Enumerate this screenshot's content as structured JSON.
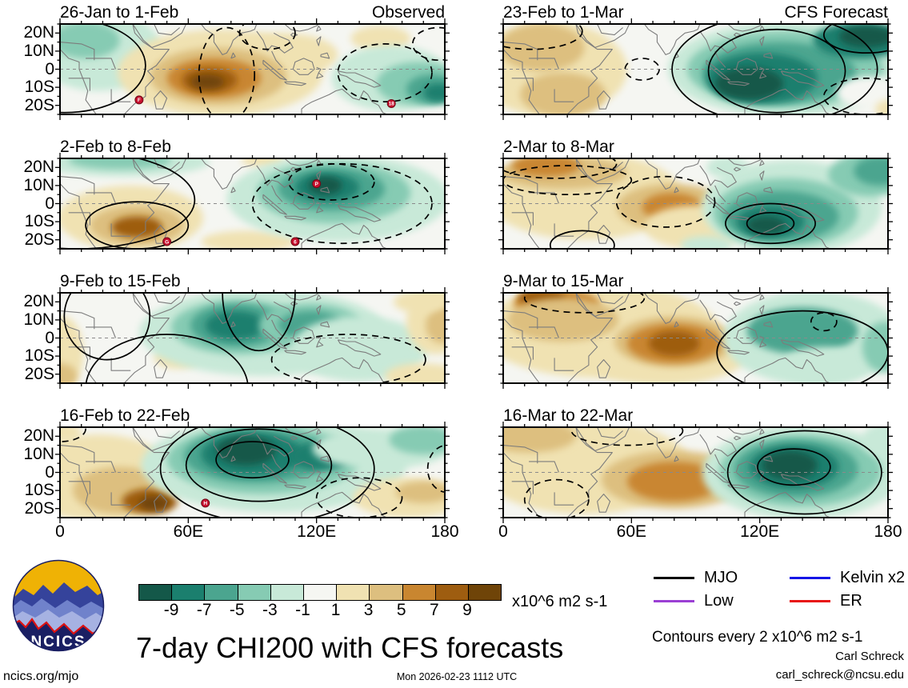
{
  "page": {
    "main_title": "7-day CHI200 with CFS forecasts",
    "timestamp": "Mon 2026-02-23 1112 UTC",
    "url_label": "ncics.org/mjo",
    "credit_name": "Carl Schreck",
    "credit_email": "carl_schreck@ncsu.edu",
    "contours_note": "Contours every 2 x10^6 m2 s-1",
    "units_label": "x10^6 m2 s-1",
    "logo_text": "NCICS"
  },
  "legend": {
    "entries": [
      {
        "label": "MJO",
        "color": "#000000"
      },
      {
        "label": "Kelvin x2",
        "color": "#1414e6"
      },
      {
        "label": "Low",
        "color": "#9b3fd4"
      },
      {
        "label": "ER",
        "color": "#e81414"
      }
    ]
  },
  "chart_data": {
    "type": "heatmap",
    "description": "Eight filled-contour longitude-latitude map panels of 7-day mean CHI200 anomalies; left column observed weeks, right column CFS forecast weeks. Shading every 2 x10^6 m2 s-1 from -9 (teal) to +9 (brown); black contours, gray coastlines, dashed gray equator, red tropical-cyclone markers.",
    "colorbar": {
      "tick_labels": [
        "-9",
        "-7",
        "-5",
        "-3",
        "-1",
        "1",
        "3",
        "5",
        "7",
        "9"
      ],
      "colors": [
        "#145849",
        "#1b7f6e",
        "#4ba58f",
        "#86cbb3",
        "#c8e9d8",
        "#f5f6f2",
        "#f0e2b2",
        "#ddbf7f",
        "#c98630",
        "#9e5d10",
        "#6f4408"
      ]
    },
    "lon_axis": {
      "tick_labels": [
        "0",
        "60E",
        "120E",
        "180"
      ],
      "tick_values": [
        0,
        60,
        120,
        180
      ],
      "range": [
        0,
        180
      ]
    },
    "lat_axis": {
      "tick_labels": [
        "20N",
        "10N",
        "0",
        "10S",
        "20S"
      ],
      "tick_values": [
        20,
        10,
        0,
        -10,
        -20
      ],
      "range": [
        -25,
        25
      ]
    },
    "panels": [
      {
        "title": "26-Jan to 1-Feb",
        "tag": "Observed",
        "col": 0,
        "row": 0,
        "features": [
          [
            18,
            10,
            30,
            22,
            4
          ],
          [
            12,
            16,
            16,
            10,
            3
          ],
          [
            75,
            -2,
            48,
            24,
            6
          ],
          [
            105,
            8,
            25,
            12,
            6
          ],
          [
            150,
            17,
            14,
            7,
            6
          ],
          [
            74,
            -4,
            32,
            16,
            7
          ],
          [
            72,
            -5,
            22,
            11,
            8
          ],
          [
            70,
            -6,
            13,
            7,
            9
          ],
          [
            69,
            -7,
            8,
            4,
            10
          ],
          [
            155,
            -5,
            28,
            18,
            4
          ],
          [
            168,
            -8,
            20,
            12,
            3
          ],
          [
            174,
            -11,
            12,
            8,
            2
          ],
          [
            177,
            -13,
            7,
            5,
            1
          ]
        ],
        "contours": [
          [
            2,
            2,
            38,
            26,
            0
          ],
          [
            78,
            -3,
            13,
            26,
            1
          ],
          [
            97,
            20,
            13,
            9,
            1
          ],
          [
            152,
            -2,
            22,
            16,
            1
          ],
          [
            177,
            14,
            12,
            9,
            1
          ]
        ],
        "cyclones": [
          [
            37,
            -17,
            "F"
          ],
          [
            155,
            -19,
            "18"
          ]
        ]
      },
      {
        "title": "2-Feb to 8-Feb",
        "tag": "",
        "col": 0,
        "row": 1,
        "features": [
          [
            30,
            23,
            40,
            8,
            4
          ],
          [
            28,
            24,
            24,
            5,
            3
          ],
          [
            33,
            -8,
            34,
            18,
            6
          ],
          [
            36,
            -12,
            22,
            11,
            7
          ],
          [
            36,
            -13,
            12,
            6,
            9
          ],
          [
            88,
            -21,
            22,
            6,
            6
          ],
          [
            95,
            24,
            10,
            4,
            6
          ],
          [
            130,
            3,
            52,
            24,
            4
          ],
          [
            128,
            6,
            36,
            17,
            3
          ],
          [
            127,
            8,
            25,
            12,
            2
          ],
          [
            125,
            9,
            15,
            8,
            1
          ],
          [
            124,
            10,
            8,
            5,
            0
          ]
        ],
        "contours": [
          [
            36,
            -12,
            24,
            13,
            0
          ],
          [
            8,
            2,
            55,
            27,
            0
          ],
          [
            132,
            0,
            42,
            22,
            1
          ],
          [
            127,
            12,
            20,
            10,
            1
          ]
        ],
        "cyclones": [
          [
            50,
            -21,
            "G"
          ],
          [
            120,
            11,
            "P"
          ],
          [
            110,
            -21,
            "6"
          ]
        ]
      },
      {
        "title": "9-Feb to 15-Feb",
        "tag": "",
        "col": 0,
        "row": 2,
        "features": [
          [
            1,
            -8,
            10,
            20,
            6
          ],
          [
            0,
            -21,
            8,
            7,
            7
          ],
          [
            55,
            -11,
            11,
            6,
            6
          ],
          [
            95,
            3,
            58,
            24,
            4
          ],
          [
            84,
            6,
            32,
            15,
            3
          ],
          [
            83,
            7,
            22,
            12,
            2
          ],
          [
            82,
            7,
            14,
            8,
            1
          ],
          [
            117,
            7,
            24,
            12,
            3
          ],
          [
            117,
            7,
            15,
            8,
            2
          ],
          [
            140,
            -6,
            32,
            18,
            4
          ],
          [
            176,
            9,
            14,
            18,
            6
          ],
          [
            179,
            7,
            8,
            10,
            7
          ],
          [
            170,
            -21,
            18,
            7,
            6
          ],
          [
            168,
            20,
            12,
            6,
            6
          ]
        ],
        "contours": [
          [
            50,
            -28,
            38,
            30,
            0
          ],
          [
            22,
            12,
            20,
            24,
            0
          ],
          [
            93,
            25,
            17,
            32,
            0
          ],
          [
            135,
            -12,
            36,
            14,
            1
          ]
        ],
        "cyclones": []
      },
      {
        "title": "16-Feb to 22-Feb",
        "tag": "",
        "col": 0,
        "row": 3,
        "features": [
          [
            18,
            -3,
            36,
            24,
            6
          ],
          [
            2,
            22,
            8,
            5,
            6
          ],
          [
            28,
            -10,
            22,
            13,
            7
          ],
          [
            42,
            -16,
            13,
            7,
            9
          ],
          [
            44,
            -17,
            7,
            4,
            10
          ],
          [
            100,
            4,
            62,
            26,
            4
          ],
          [
            95,
            7,
            45,
            19,
            3
          ],
          [
            92,
            9,
            34,
            15,
            2
          ],
          [
            90,
            10,
            24,
            12,
            1
          ],
          [
            87,
            12,
            14,
            8,
            0
          ],
          [
            122,
            9,
            14,
            8,
            1
          ],
          [
            150,
            13,
            32,
            11,
            4
          ],
          [
            170,
            18,
            16,
            8,
            3
          ],
          [
            163,
            -14,
            26,
            11,
            6
          ],
          [
            170,
            -11,
            13,
            6,
            7
          ]
        ],
        "contours": [
          [
            90,
            7,
            17,
            10,
            0
          ],
          [
            93,
            4,
            34,
            20,
            0
          ],
          [
            97,
            2,
            50,
            30,
            0
          ],
          [
            0,
            24,
            12,
            7,
            1
          ],
          [
            140,
            -14,
            20,
            11,
            1
          ],
          [
            181,
            2,
            9,
            13,
            1
          ]
        ],
        "cyclones": [
          [
            68,
            -17,
            "H"
          ]
        ]
      },
      {
        "title": "23-Feb to 1-Mar",
        "tag": "CFS Forecast",
        "col": 1,
        "row": 0,
        "features": [
          [
            22,
            0,
            36,
            26,
            6
          ],
          [
            18,
            12,
            20,
            13,
            7
          ],
          [
            28,
            -14,
            20,
            12,
            7
          ],
          [
            132,
            0,
            55,
            26,
            4
          ],
          [
            132,
            0,
            46,
            21,
            3
          ],
          [
            129,
            -2,
            36,
            17,
            2
          ],
          [
            121,
            -5,
            26,
            14,
            1
          ],
          [
            115,
            -8,
            16,
            9,
            0
          ],
          [
            167,
            16,
            22,
            10,
            1
          ],
          [
            170,
            18,
            13,
            6,
            0
          ],
          [
            172,
            -13,
            16,
            9,
            5
          ],
          [
            180,
            -22,
            6,
            5,
            6
          ]
        ],
        "contours": [
          [
            128,
            -1,
            32,
            23,
            0
          ],
          [
            127,
            0,
            48,
            30,
            0
          ],
          [
            170,
            19,
            20,
            10,
            0
          ],
          [
            65,
            0,
            8,
            6,
            1
          ],
          [
            13,
            21,
            24,
            10,
            1
          ],
          [
            170,
            -15,
            20,
            10,
            1
          ]
        ],
        "cyclones": []
      },
      {
        "title": "2-Mar to 8-Mar",
        "tag": "",
        "col": 1,
        "row": 1,
        "features": [
          [
            38,
            4,
            46,
            24,
            6
          ],
          [
            28,
            17,
            30,
            9,
            7
          ],
          [
            20,
            21,
            16,
            6,
            8
          ],
          [
            79,
            -2,
            26,
            13,
            7
          ],
          [
            79,
            -2,
            14,
            8,
            8
          ],
          [
            90,
            -13,
            24,
            12,
            6
          ],
          [
            95,
            -23,
            12,
            5,
            4
          ],
          [
            105,
            20,
            10,
            6,
            4
          ],
          [
            135,
            -2,
            42,
            26,
            4
          ],
          [
            132,
            -5,
            34,
            19,
            3
          ],
          [
            130,
            -7,
            27,
            14,
            2
          ],
          [
            125,
            -10,
            16,
            9,
            1
          ],
          [
            123,
            -12,
            9,
            5,
            0
          ],
          [
            172,
            16,
            20,
            12,
            3
          ],
          [
            176,
            18,
            12,
            8,
            2
          ]
        ],
        "contours": [
          [
            25,
            22,
            28,
            8,
            1
          ],
          [
            30,
            13,
            30,
            8,
            1
          ],
          [
            76,
            1,
            23,
            14,
            1
          ],
          [
            125,
            -11,
            21,
            11,
            0
          ],
          [
            125,
            -11,
            11,
            6,
            0
          ],
          [
            37,
            -23,
            15,
            8,
            0
          ]
        ],
        "cyclones": []
      },
      {
        "title": "9-Mar to 15-Mar",
        "tag": "",
        "col": 1,
        "row": 2,
        "features": [
          [
            45,
            4,
            56,
            26,
            6
          ],
          [
            75,
            -8,
            40,
            18,
            6
          ],
          [
            25,
            19,
            20,
            8,
            8
          ],
          [
            18,
            22,
            11,
            5,
            9
          ],
          [
            28,
            10,
            26,
            12,
            7
          ],
          [
            80,
            -2,
            28,
            14,
            7
          ],
          [
            80,
            -3,
            22,
            11,
            8
          ],
          [
            80,
            -3,
            12,
            7,
            9
          ],
          [
            145,
            0,
            42,
            26,
            4
          ],
          [
            140,
            4,
            26,
            13,
            2
          ],
          [
            150,
            -15,
            20,
            10,
            4
          ],
          [
            178,
            -5,
            10,
            14,
            3
          ]
        ],
        "contours": [
          [
            38,
            22,
            28,
            8,
            1
          ],
          [
            150,
            9,
            6,
            5,
            1
          ],
          [
            140,
            -8,
            40,
            23,
            0
          ]
        ],
        "cyclones": []
      },
      {
        "title": "16-Mar to 22-Mar",
        "tag": "",
        "col": 1,
        "row": 3,
        "features": [
          [
            38,
            3,
            50,
            26,
            6
          ],
          [
            12,
            20,
            22,
            9,
            7
          ],
          [
            80,
            -4,
            34,
            16,
            7
          ],
          [
            80,
            -5,
            22,
            11,
            8
          ],
          [
            140,
            0,
            47,
            26,
            4
          ],
          [
            139,
            1,
            38,
            20,
            3
          ],
          [
            137,
            2,
            29,
            16,
            2
          ],
          [
            136,
            3,
            21,
            12,
            1
          ],
          [
            134,
            4,
            13,
            8,
            0
          ],
          [
            178,
            18,
            10,
            9,
            4
          ]
        ],
        "contours": [
          [
            58,
            23,
            26,
            8,
            1
          ],
          [
            25,
            -15,
            15,
            11,
            1
          ],
          [
            136,
            3,
            17,
            10,
            0
          ],
          [
            141,
            0,
            36,
            23,
            0
          ]
        ],
        "cyclones": []
      }
    ]
  }
}
